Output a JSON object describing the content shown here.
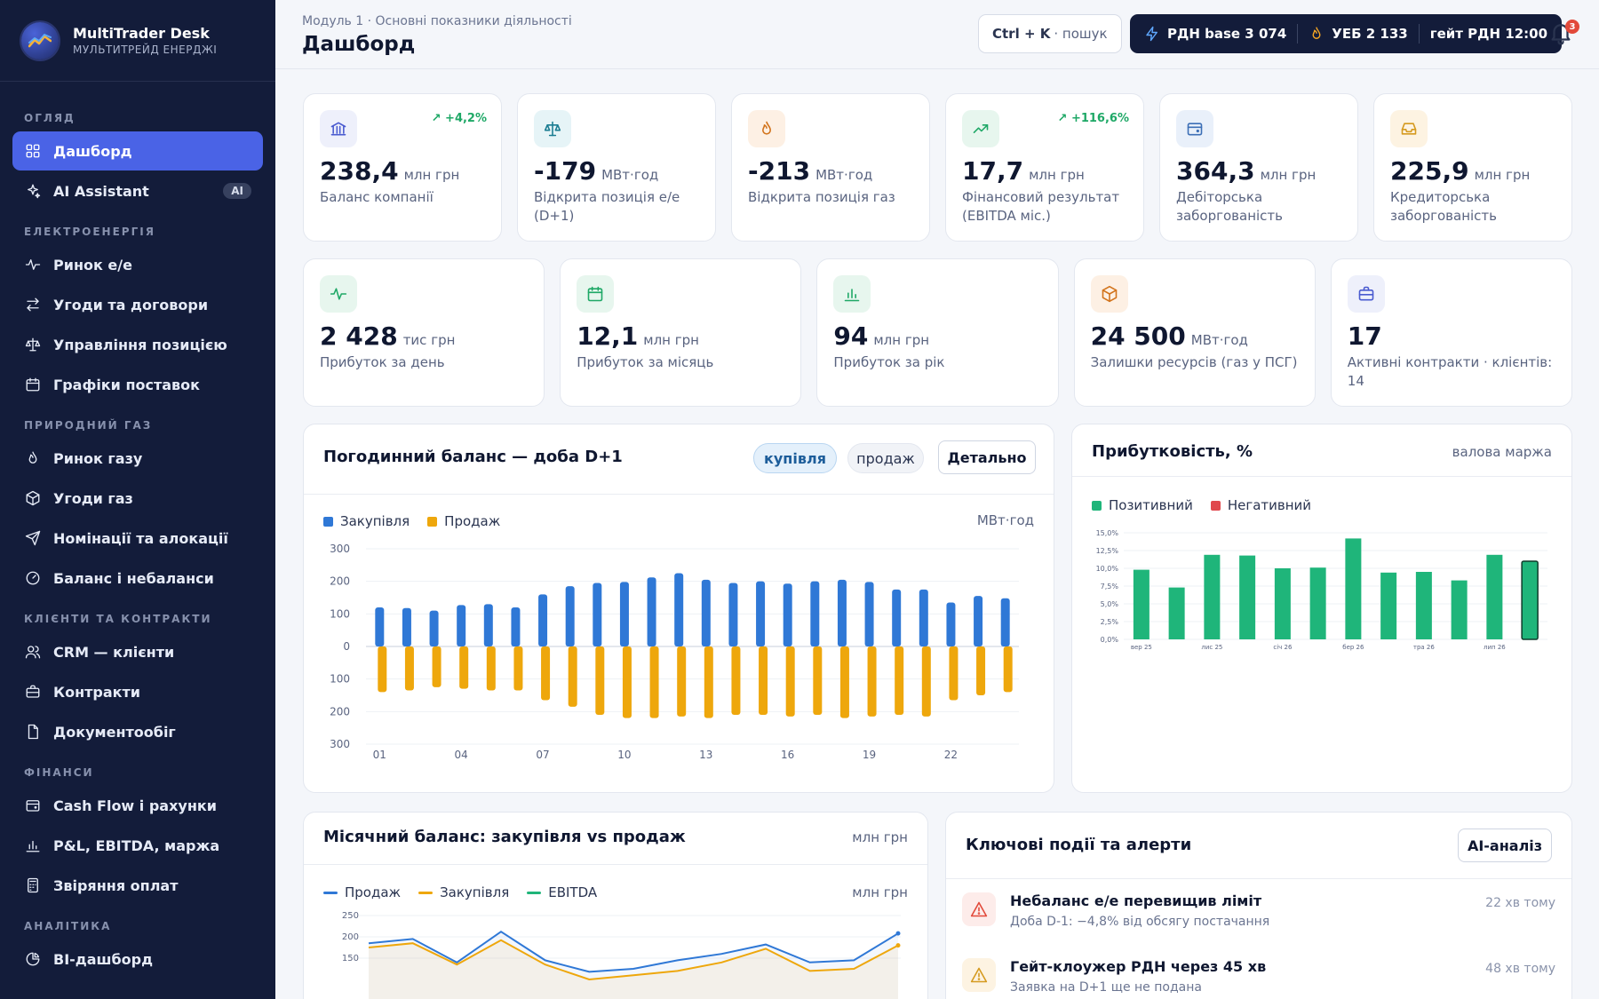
{
  "brand": {
    "name": "MultiTrader Desk",
    "subtitle": "МУЛЬТИТРЕЙД ЕНЕРДЖІ"
  },
  "nav": {
    "sections": [
      {
        "title": "ОГЛЯД",
        "items": [
          {
            "label": "Дашборд",
            "icon": "grid-icon",
            "active": true
          },
          {
            "label": "AI Assistant",
            "icon": "sparkle-icon",
            "badge": "AI"
          }
        ]
      },
      {
        "title": "ЕЛЕКТРОЕНЕРГІЯ",
        "items": [
          {
            "label": "Ринок е/е",
            "icon": "pulse-icon"
          },
          {
            "label": "Угоди та договори",
            "icon": "swap-icon"
          },
          {
            "label": "Управління позицією",
            "icon": "scale-icon"
          },
          {
            "label": "Графіки поставок",
            "icon": "calendar-icon"
          }
        ]
      },
      {
        "title": "ПРИРОДНИЙ ГАЗ",
        "items": [
          {
            "label": "Ринок газу",
            "icon": "flame-icon"
          },
          {
            "label": "Угоди газ",
            "icon": "box-icon"
          },
          {
            "label": "Номінації та алокації",
            "icon": "send-icon"
          },
          {
            "label": "Баланс і небаланси",
            "icon": "gauge-icon"
          }
        ]
      },
      {
        "title": "КЛІЄНТИ ТА КОНТРАКТИ",
        "items": [
          {
            "label": "CRM — клієнти",
            "icon": "users-icon"
          },
          {
            "label": "Контракти",
            "icon": "briefcase-icon"
          },
          {
            "label": "Документообіг",
            "icon": "file-icon"
          }
        ]
      },
      {
        "title": "ФІНАНСИ",
        "items": [
          {
            "label": "Cash Flow і рахунки",
            "icon": "wallet-icon"
          },
          {
            "label": "P&L, EBITDA, маржа",
            "icon": "bar-chart-icon"
          },
          {
            "label": "Звіряння оплат",
            "icon": "calculator-icon"
          }
        ]
      },
      {
        "title": "АНАЛІТИКА",
        "items": [
          {
            "label": "BI-дашборд",
            "icon": "pie-icon"
          }
        ]
      }
    ]
  },
  "header": {
    "breadcrumb": "Модуль 1 · Основні показники діяльності",
    "title": "Дашборд",
    "search_key": "Ctrl + K",
    "search_label": "· пошук",
    "ticker": [
      {
        "label": "РДН base 3 074",
        "icon": "bolt-icon"
      },
      {
        "label": "УЕБ 2 133",
        "icon": "flame-icon"
      },
      {
        "label": "гейт РДН 12:00",
        "icon": ""
      }
    ],
    "notifications": "3"
  },
  "kpis_row1": [
    {
      "value": "238,4",
      "unit": "млн грн",
      "label": "Баланс компанії",
      "delta": "+4,2%",
      "icon": "bank-icon",
      "tint": "#eef0fb",
      "color": "#4a5bd0"
    },
    {
      "value": "-179",
      "unit": "МВт·год",
      "label": "Відкрита позиція е/е (D+1)",
      "delta": "",
      "icon": "scale-icon",
      "tint": "#e6f4f7",
      "color": "#1b7d92"
    },
    {
      "value": "-213",
      "unit": "МВт·год",
      "label": "Відкрита позиція газ",
      "delta": "",
      "icon": "flame-icon",
      "tint": "#fdf0e4",
      "color": "#d2731b"
    },
    {
      "value": "17,7",
      "unit": "млн грн",
      "label": "Фінансовий результат (EBITDA міс.)",
      "delta": "+116,6%",
      "icon": "trend-up-icon",
      "tint": "#e7f6ee",
      "color": "#1ea866"
    },
    {
      "value": "364,3",
      "unit": "млн грн",
      "label": "Дебіторська заборгованість",
      "delta": "",
      "icon": "wallet-icon",
      "tint": "#e9f0fa",
      "color": "#3d6fb6"
    },
    {
      "value": "225,9",
      "unit": "млн грн",
      "label": "Кредиторська заборгованість",
      "delta": "",
      "icon": "inbox-icon",
      "tint": "#fdf3e2",
      "color": "#d59a1f"
    }
  ],
  "kpis_row2": [
    {
      "value": "2 428",
      "unit": "тис грн",
      "label": "Прибуток за день",
      "icon": "pulse-icon",
      "tint": "#e7f6ee",
      "color": "#1ea866"
    },
    {
      "value": "12,1",
      "unit": "млн грн",
      "label": "Прибуток за місяць",
      "icon": "calendar-icon",
      "tint": "#e7f6ee",
      "color": "#1ea866"
    },
    {
      "value": "94",
      "unit": "млн грн",
      "label": "Прибуток за рік",
      "icon": "bar-chart-icon",
      "tint": "#e7f6ee",
      "color": "#1ea866"
    },
    {
      "value": "24 500",
      "unit": "МВт·год",
      "label": "Залишки ресурсів (газ у ПСГ)",
      "icon": "box-icon",
      "tint": "#fdf0e4",
      "color": "#d2731b"
    },
    {
      "value": "17",
      "unit": "",
      "label": "Активні контракти · клієнтів: 14",
      "icon": "briefcase-icon",
      "tint": "#eef0fb",
      "color": "#4a5bd0"
    }
  ],
  "hourly_panel": {
    "title": "Погодинний баланс — доба D+1",
    "pill_buy": "купівля",
    "pill_sell": "продаж",
    "details_button": "Детально",
    "legend_buy": "Закупівля",
    "legend_sell": "Продаж",
    "unit": "МВт·год"
  },
  "profit_panel": {
    "title": "Прибутковість, %",
    "subtitle": "валова маржа",
    "legend_pos": "Позитивний",
    "legend_neg": "Негативний"
  },
  "monthly_panel": {
    "title": "Місячний баланс: закупівля vs продаж",
    "unit_header": "млн грн",
    "legend": [
      "Продаж",
      "Закупівля",
      "EBITDA"
    ],
    "unit": "млн грн"
  },
  "events_panel": {
    "title": "Ключові події та алерти",
    "ai_button": "AI-аналіз",
    "events": [
      {
        "title": "Небаланс е/е перевищив ліміт",
        "sub": "Доба D-1: −4,8% від обсягу постачання",
        "time": "22 хв тому",
        "icon": "warning-icon",
        "tint": "#fdecea",
        "color": "#e2493a"
      },
      {
        "title": "Гейт-клоужер РДН через 45 хв",
        "sub": "Заявка на D+1 ще не подана",
        "time": "48 хв тому",
        "icon": "warning-icon",
        "tint": "#fdf3e2",
        "color": "#d59a1f"
      }
    ]
  },
  "colors": {
    "buy": "#2f78d6",
    "sell": "#eea70c",
    "positive": "#1fb57a",
    "negative": "#e0474c",
    "accent": "#4a63e6",
    "ebitda": "#1fb57a"
  },
  "chart_data": [
    {
      "type": "bar",
      "title": "Погодинний баланс — доба D+1",
      "ylabel": "МВт·год",
      "x": [
        "01",
        "02",
        "03",
        "04",
        "05",
        "06",
        "07",
        "08",
        "09",
        "10",
        "11",
        "12",
        "13",
        "14",
        "15",
        "16",
        "17",
        "18",
        "19",
        "20",
        "21",
        "22",
        "23",
        "24"
      ],
      "x_tick_labels": [
        "01",
        "04",
        "07",
        "10",
        "13",
        "16",
        "19",
        "22"
      ],
      "y_tick_labels": [
        "300",
        "200",
        "100",
        "0",
        "100",
        "200",
        "300"
      ],
      "ylim": [
        -300,
        300
      ],
      "series": [
        {
          "name": "Закупівля",
          "values": [
            120,
            118,
            110,
            127,
            130,
            120,
            160,
            185,
            195,
            198,
            212,
            225,
            205,
            195,
            200,
            193,
            200,
            205,
            198,
            175,
            175,
            135,
            155,
            148
          ]
        },
        {
          "name": "Продаж",
          "values": [
            -140,
            -135,
            -125,
            -130,
            -135,
            -135,
            -165,
            -185,
            -210,
            -220,
            -220,
            -215,
            -220,
            -210,
            -210,
            -215,
            -210,
            -220,
            -215,
            -210,
            -215,
            -165,
            -150,
            -140
          ]
        }
      ]
    },
    {
      "type": "bar",
      "title": "Прибутковість, %",
      "categories": [
        "вер 25",
        "жов 25",
        "лис 25",
        "гру 25",
        "січ 26",
        "лют 26",
        "бер 26",
        "кві 26",
        "тра 26",
        "чер 26",
        "лип 26",
        "сер 26"
      ],
      "x_tick_labels": [
        "вер 25",
        "лис 25",
        "січ 26",
        "бер 26",
        "тра 26",
        "лип 26"
      ],
      "y_tick_labels": [
        "15,0%",
        "12,5%",
        "10,0%",
        "7,5%",
        "5,0%",
        "2,5%",
        "0,0%"
      ],
      "ylim": [
        0,
        15
      ],
      "values": [
        9.8,
        7.3,
        11.9,
        11.8,
        10.0,
        10.1,
        14.2,
        9.4,
        9.5,
        8.3,
        11.9,
        11.0
      ],
      "highlight_last": true
    },
    {
      "type": "line",
      "title": "Місячний баланс: закупівля vs продаж",
      "ylabel": "млн грн",
      "y_tick_labels": [
        "250",
        "200",
        "150"
      ],
      "ylim": [
        100,
        250
      ],
      "series": [
        {
          "name": "Продаж",
          "values": [
            185,
            195,
            140,
            212,
            145,
            118,
            125,
            145,
            160,
            182,
            140,
            145,
            208
          ]
        },
        {
          "name": "Закупівля",
          "values": [
            175,
            185,
            135,
            192,
            135,
            100,
            110,
            120,
            140,
            172,
            120,
            125,
            180
          ]
        },
        {
          "name": "EBITDA",
          "values": [
            0,
            0,
            0,
            0,
            0,
            0,
            0,
            0,
            0,
            0,
            0,
            0,
            0
          ]
        }
      ]
    }
  ]
}
